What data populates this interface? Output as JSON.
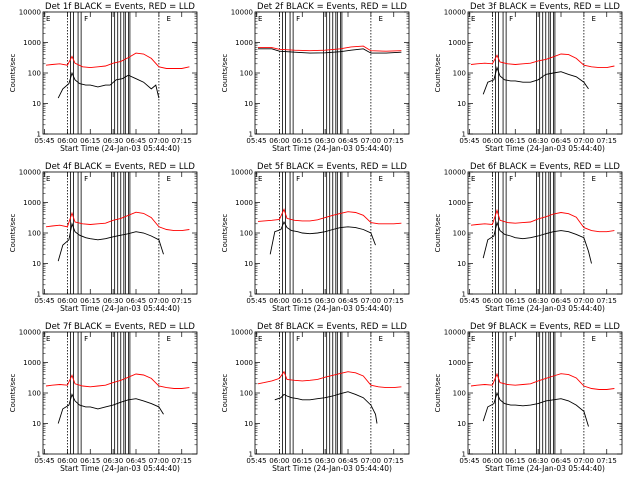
{
  "figure": {
    "xlabel": "Start Time (24-Jan-03 05:44:40)",
    "ylabel": "Counts/sec",
    "x_ticks": [
      "05:45",
      "06:00",
      "06:15",
      "06:30",
      "06:45",
      "07:00",
      "07:15"
    ],
    "y_ticks": [
      "1",
      "10",
      "100",
      "1000",
      "10000"
    ],
    "interval_labels": [
      "E",
      "F",
      "E"
    ],
    "colors": {
      "events": "#000000",
      "lld": "#ff0000",
      "frame": "#000000"
    }
  },
  "chart_data": [
    {
      "type": "line",
      "title": "Det 1f BLACK = Events, RED = LLD",
      "xlabel": "Start Time (24-Jan-03 05:44:40)",
      "ylabel": "Counts/sec",
      "y_scale": "log",
      "ylim": [
        1,
        10000
      ],
      "x_range": [
        "05:44",
        "07:25"
      ],
      "series": [
        {
          "name": "Events",
          "color": "#000000",
          "x": [
            "05:54",
            "05:57",
            "06:01",
            "06:03",
            "06:05",
            "06:08",
            "06:12",
            "06:15",
            "06:20",
            "06:25",
            "06:28",
            "06:32",
            "06:36",
            "06:40",
            "06:45",
            "06:50",
            "06:55",
            "06:58",
            "07:00"
          ],
          "y": [
            15,
            30,
            45,
            100,
            60,
            45,
            40,
            40,
            35,
            40,
            40,
            60,
            65,
            85,
            65,
            50,
            30,
            40,
            15
          ]
        },
        {
          "name": "LLD",
          "color": "#ff0000",
          "x": [
            "05:46",
            "05:50",
            "05:55",
            "06:00",
            "06:03",
            "06:05",
            "06:10",
            "06:15",
            "06:20",
            "06:25",
            "06:30",
            "06:35",
            "06:40",
            "06:45",
            "06:50",
            "06:55",
            "07:00",
            "07:05",
            "07:10",
            "07:15",
            "07:20"
          ],
          "y": [
            180,
            190,
            200,
            180,
            350,
            210,
            160,
            150,
            160,
            170,
            210,
            240,
            320,
            450,
            420,
            300,
            160,
            140,
            140,
            140,
            160
          ]
        }
      ]
    },
    {
      "type": "line",
      "title": "Det 2f BLACK = Events, RED = LLD",
      "xlabel": "Start Time (24-Jan-03 05:44:40)",
      "ylabel": "Counts/sec",
      "y_scale": "log",
      "ylim": [
        1,
        10000
      ],
      "x_range": [
        "05:44",
        "07:25"
      ],
      "series": [
        {
          "name": "Events",
          "color": "#000000",
          "x": [
            "05:46",
            "05:55",
            "06:00",
            "06:10",
            "06:20",
            "06:30",
            "06:40",
            "06:47",
            "06:55",
            "07:00",
            "07:10",
            "07:20"
          ],
          "y": [
            620,
            620,
            520,
            480,
            450,
            460,
            500,
            560,
            620,
            450,
            450,
            480
          ]
        },
        {
          "name": "LLD",
          "color": "#ff0000",
          "x": [
            "05:46",
            "05:55",
            "06:00",
            "06:10",
            "06:20",
            "06:30",
            "06:40",
            "06:47",
            "06:55",
            "07:00",
            "07:10",
            "07:20"
          ],
          "y": [
            680,
            680,
            600,
            560,
            540,
            560,
            620,
            720,
            760,
            540,
            520,
            540
          ]
        }
      ]
    },
    {
      "type": "line",
      "title": "Det 3f BLACK = Events, RED = LLD",
      "xlabel": "Start Time (24-Jan-03 05:44:40)",
      "ylabel": "Counts/sec",
      "y_scale": "log",
      "ylim": [
        1,
        10000
      ],
      "x_range": [
        "05:44",
        "07:25"
      ],
      "series": [
        {
          "name": "Events",
          "color": "#000000",
          "x": [
            "05:54",
            "05:57",
            "06:01",
            "06:03",
            "06:05",
            "06:08",
            "06:12",
            "06:15",
            "06:20",
            "06:25",
            "06:30",
            "06:35",
            "06:40",
            "06:45",
            "06:50",
            "06:55",
            "07:00",
            "07:03"
          ],
          "y": [
            20,
            50,
            60,
            150,
            80,
            60,
            55,
            55,
            50,
            50,
            60,
            90,
            100,
            110,
            90,
            75,
            50,
            30
          ]
        },
        {
          "name": "LLD",
          "color": "#ff0000",
          "x": [
            "05:46",
            "05:50",
            "05:55",
            "06:00",
            "06:03",
            "06:05",
            "06:10",
            "06:15",
            "06:20",
            "06:25",
            "06:30",
            "06:35",
            "06:40",
            "06:45",
            "06:50",
            "06:55",
            "07:00",
            "07:05",
            "07:10",
            "07:15",
            "07:20"
          ],
          "y": [
            190,
            200,
            210,
            200,
            380,
            230,
            200,
            190,
            200,
            210,
            250,
            280,
            340,
            420,
            400,
            300,
            180,
            160,
            150,
            150,
            170
          ]
        }
      ]
    },
    {
      "type": "line",
      "title": "Det 4f BLACK = Events, RED = LLD",
      "xlabel": "Start Time (24-Jan-03 05:44:40)",
      "ylabel": "Counts/sec",
      "y_scale": "log",
      "ylim": [
        1,
        10000
      ],
      "x_range": [
        "05:44",
        "07:25"
      ],
      "series": [
        {
          "name": "Events",
          "color": "#000000",
          "x": [
            "05:54",
            "05:57",
            "06:01",
            "06:03",
            "06:05",
            "06:08",
            "06:12",
            "06:15",
            "06:20",
            "06:25",
            "06:30",
            "06:35",
            "06:40",
            "06:45",
            "06:50",
            "06:55",
            "07:00",
            "07:03"
          ],
          "y": [
            12,
            40,
            60,
            200,
            110,
            85,
            70,
            65,
            60,
            65,
            75,
            85,
            95,
            110,
            100,
            80,
            60,
            20
          ]
        },
        {
          "name": "LLD",
          "color": "#ff0000",
          "x": [
            "05:46",
            "05:50",
            "05:55",
            "06:00",
            "06:03",
            "06:05",
            "06:10",
            "06:15",
            "06:20",
            "06:25",
            "06:30",
            "06:35",
            "06:40",
            "06:45",
            "06:50",
            "06:55",
            "07:00",
            "07:05",
            "07:10",
            "07:15",
            "07:20"
          ],
          "y": [
            160,
            170,
            180,
            160,
            450,
            230,
            200,
            190,
            200,
            210,
            260,
            300,
            380,
            480,
            440,
            320,
            160,
            130,
            120,
            120,
            130
          ]
        }
      ]
    },
    {
      "type": "line",
      "title": "Det 5f BLACK = Events, RED = LLD",
      "xlabel": "Start Time (24-Jan-03 05:44:40)",
      "ylabel": "Counts/sec",
      "y_scale": "log",
      "ylim": [
        1,
        10000
      ],
      "x_range": [
        "05:44",
        "07:25"
      ],
      "series": [
        {
          "name": "Events",
          "color": "#000000",
          "x": [
            "05:54",
            "05:57",
            "06:01",
            "06:03",
            "06:05",
            "06:08",
            "06:12",
            "06:15",
            "06:20",
            "06:25",
            "06:30",
            "06:35",
            "06:40",
            "06:45",
            "06:50",
            "06:55",
            "07:00",
            "07:03"
          ],
          "y": [
            20,
            110,
            130,
            230,
            150,
            120,
            110,
            100,
            95,
            100,
            110,
            130,
            150,
            160,
            150,
            130,
            100,
            40
          ]
        },
        {
          "name": "LLD",
          "color": "#ff0000",
          "x": [
            "05:46",
            "05:50",
            "05:55",
            "06:00",
            "06:03",
            "06:05",
            "06:10",
            "06:15",
            "06:20",
            "06:25",
            "06:30",
            "06:35",
            "06:40",
            "06:45",
            "06:50",
            "06:55",
            "07:00",
            "07:05",
            "07:10",
            "07:15",
            "07:20"
          ],
          "y": [
            240,
            250,
            260,
            280,
            600,
            300,
            260,
            250,
            250,
            270,
            320,
            380,
            440,
            500,
            470,
            380,
            220,
            200,
            200,
            200,
            210
          ]
        }
      ]
    },
    {
      "type": "line",
      "title": "Det 6f BLACK = Events, RED = LLD",
      "xlabel": "Start Time (24-Jan-03 05:44:40)",
      "ylabel": "Counts/sec",
      "y_scale": "log",
      "ylim": [
        1,
        10000
      ],
      "x_range": [
        "05:44",
        "07:25"
      ],
      "series": [
        {
          "name": "Events",
          "color": "#000000",
          "x": [
            "05:54",
            "05:57",
            "06:01",
            "06:03",
            "06:05",
            "06:08",
            "06:12",
            "06:15",
            "06:20",
            "06:25",
            "06:30",
            "06:35",
            "06:40",
            "06:45",
            "06:50",
            "06:55",
            "07:00",
            "07:03",
            "07:05"
          ],
          "y": [
            15,
            60,
            80,
            220,
            120,
            90,
            80,
            70,
            65,
            70,
            80,
            95,
            110,
            120,
            110,
            90,
            70,
            25,
            10
          ]
        },
        {
          "name": "LLD",
          "color": "#ff0000",
          "x": [
            "05:46",
            "05:50",
            "05:55",
            "06:00",
            "06:03",
            "06:05",
            "06:10",
            "06:15",
            "06:20",
            "06:25",
            "06:30",
            "06:35",
            "06:40",
            "06:45",
            "06:50",
            "06:55",
            "07:00",
            "07:05",
            "07:10",
            "07:15",
            "07:20"
          ],
          "y": [
            180,
            190,
            200,
            190,
            550,
            260,
            220,
            210,
            220,
            230,
            290,
            340,
            420,
            470,
            430,
            330,
            150,
            120,
            110,
            110,
            120
          ]
        }
      ]
    },
    {
      "type": "line",
      "title": "Det 7f BLACK = Events, RED = LLD",
      "xlabel": "Start Time (24-Jan-03 05:44:40)",
      "ylabel": "Counts/sec",
      "y_scale": "log",
      "ylim": [
        1,
        10000
      ],
      "x_range": [
        "05:44",
        "07:25"
      ],
      "series": [
        {
          "name": "Events",
          "color": "#000000",
          "x": [
            "05:54",
            "05:57",
            "06:01",
            "06:03",
            "06:05",
            "06:08",
            "06:12",
            "06:15",
            "06:20",
            "06:25",
            "06:30",
            "06:35",
            "06:40",
            "06:45",
            "06:50",
            "06:55",
            "07:00",
            "07:03"
          ],
          "y": [
            10,
            30,
            40,
            90,
            55,
            40,
            35,
            35,
            30,
            35,
            40,
            50,
            60,
            65,
            55,
            45,
            35,
            20
          ]
        },
        {
          "name": "LLD",
          "color": "#ff0000",
          "x": [
            "05:46",
            "05:50",
            "05:55",
            "06:00",
            "06:03",
            "06:05",
            "06:10",
            "06:15",
            "06:20",
            "06:25",
            "06:30",
            "06:35",
            "06:40",
            "06:45",
            "06:50",
            "06:55",
            "07:00",
            "07:05",
            "07:10",
            "07:15",
            "07:20"
          ],
          "y": [
            170,
            180,
            190,
            180,
            380,
            200,
            170,
            160,
            170,
            180,
            220,
            260,
            330,
            420,
            390,
            300,
            170,
            150,
            140,
            140,
            150
          ]
        }
      ]
    },
    {
      "type": "line",
      "title": "Det 8f BLACK = Events, RED = LLD",
      "xlabel": "Start Time (24-Jan-03 05:44:40)",
      "ylabel": "Counts/sec",
      "y_scale": "log",
      "ylim": [
        1,
        10000
      ],
      "x_range": [
        "05:44",
        "07:25"
      ],
      "series": [
        {
          "name": "Events",
          "color": "#000000",
          "x": [
            "05:57",
            "06:01",
            "06:03",
            "06:05",
            "06:08",
            "06:12",
            "06:15",
            "06:20",
            "06:25",
            "06:30",
            "06:35",
            "06:40",
            "06:45",
            "06:50",
            "06:55",
            "07:00",
            "07:03",
            "07:04"
          ],
          "y": [
            60,
            70,
            90,
            80,
            70,
            65,
            60,
            60,
            65,
            70,
            80,
            95,
            110,
            90,
            70,
            40,
            20,
            10
          ]
        },
        {
          "name": "LLD",
          "color": "#ff0000",
          "x": [
            "05:46",
            "05:50",
            "05:55",
            "06:00",
            "06:03",
            "06:05",
            "06:10",
            "06:15",
            "06:20",
            "06:25",
            "06:30",
            "06:35",
            "06:40",
            "06:45",
            "06:50",
            "06:55",
            "07:00",
            "07:05",
            "07:10",
            "07:15",
            "07:20"
          ],
          "y": [
            200,
            220,
            250,
            300,
            500,
            280,
            260,
            250,
            260,
            280,
            330,
            380,
            440,
            500,
            460,
            360,
            180,
            160,
            150,
            150,
            160
          ]
        }
      ]
    },
    {
      "type": "line",
      "title": "Det 9f BLACK = Events, RED = LLD",
      "xlabel": "Start Time (24-Jan-03 05:44:40)",
      "ylabel": "Counts/sec",
      "y_scale": "log",
      "ylim": [
        1,
        10000
      ],
      "x_range": [
        "05:44",
        "07:25"
      ],
      "series": [
        {
          "name": "Events",
          "color": "#000000",
          "x": [
            "05:54",
            "05:57",
            "06:01",
            "06:03",
            "06:05",
            "06:08",
            "06:12",
            "06:15",
            "06:20",
            "06:25",
            "06:30",
            "06:35",
            "06:40",
            "06:45",
            "06:50",
            "06:55",
            "07:00",
            "07:03"
          ],
          "y": [
            12,
            35,
            45,
            100,
            60,
            45,
            40,
            40,
            38,
            40,
            45,
            55,
            60,
            65,
            55,
            40,
            25,
            8
          ]
        },
        {
          "name": "LLD",
          "color": "#ff0000",
          "x": [
            "05:46",
            "05:50",
            "05:55",
            "06:00",
            "06:03",
            "06:05",
            "06:10",
            "06:15",
            "06:20",
            "06:25",
            "06:30",
            "06:35",
            "06:40",
            "06:45",
            "06:50",
            "06:55",
            "07:00",
            "07:05",
            "07:10",
            "07:15",
            "07:20"
          ],
          "y": [
            170,
            180,
            190,
            180,
            420,
            220,
            190,
            180,
            190,
            200,
            250,
            300,
            360,
            430,
            400,
            310,
            170,
            140,
            130,
            130,
            140
          ]
        }
      ]
    }
  ]
}
